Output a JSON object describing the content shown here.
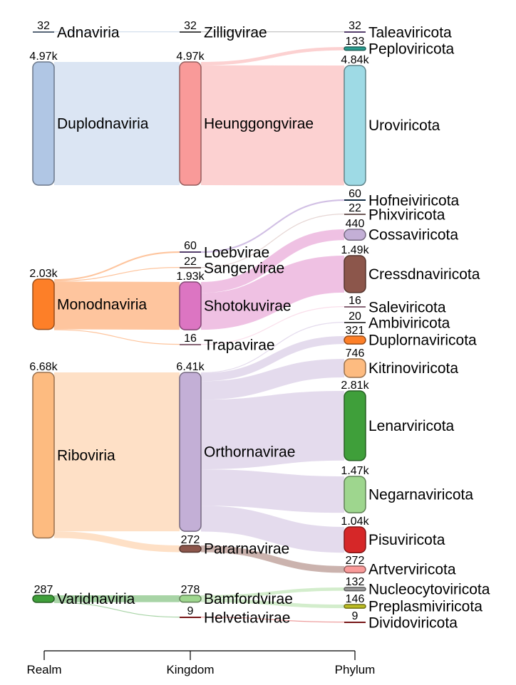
{
  "chart_data": {
    "type": "sankey",
    "axis_labels": [
      "Realm",
      "Kingdom",
      "Phylum"
    ],
    "nodes": [
      {
        "id": "Adnaviria",
        "col": 0,
        "label": "Adnaviria",
        "value_label": "32",
        "color": "#9fb8d8"
      },
      {
        "id": "Duplodnaviria",
        "col": 0,
        "label": "Duplodnaviria",
        "value_label": "4.97k",
        "color": "#b0c6e4"
      },
      {
        "id": "Monodnaviria",
        "col": 0,
        "label": "Monodnaviria",
        "value_label": "2.03k",
        "color": "#fd7f28"
      },
      {
        "id": "Riboviria",
        "col": 0,
        "label": "Riboviria",
        "value_label": "6.68k",
        "color": "#fdbb80"
      },
      {
        "id": "Varidnaviria",
        "col": 0,
        "label": "Varidnaviria",
        "value_label": "287",
        "color": "#3f9f3a"
      },
      {
        "id": "Zilligvirae",
        "col": 1,
        "label": "Zilligvirae",
        "value_label": "32",
        "color": "#7f7f7f"
      },
      {
        "id": "Heunggongvirae",
        "col": 1,
        "label": "Heunggongvirae",
        "value_label": "4.97k",
        "color": "#f99a99"
      },
      {
        "id": "Loebvirae",
        "col": 1,
        "label": "Loebvirae",
        "value_label": "60",
        "color": "#9a71c4"
      },
      {
        "id": "Sangervirae",
        "col": 1,
        "label": "Sangervirae",
        "value_label": "22",
        "color": "#c8a3a0"
      },
      {
        "id": "Shotokuvirae",
        "col": 1,
        "label": "Shotokuvirae",
        "value_label": "1.93k",
        "color": "#dc75c2"
      },
      {
        "id": "Trapavirae",
        "col": 1,
        "label": "Trapavirae",
        "value_label": "16",
        "color": "#f4b6d2"
      },
      {
        "id": "Orthornavirae",
        "col": 1,
        "label": "Orthornavirae",
        "value_label": "6.41k",
        "color": "#c3afd6"
      },
      {
        "id": "Pararnavirae",
        "col": 1,
        "label": "Pararnavirae",
        "value_label": "272",
        "color": "#8c564b"
      },
      {
        "id": "Bamfordvirae",
        "col": 1,
        "label": "Bamfordvirae",
        "value_label": "278",
        "color": "#9ed68e"
      },
      {
        "id": "Helvetiavirae",
        "col": 1,
        "label": "Helvetiavirae",
        "value_label": "9",
        "color": "#d62728"
      },
      {
        "id": "Taleaviricota",
        "col": 2,
        "label": "Taleaviricota",
        "value_label": "32",
        "color": "#9a71c4"
      },
      {
        "id": "Peploviricota",
        "col": 2,
        "label": "Peploviricota",
        "value_label": "133",
        "color": "#2a9d8f"
      },
      {
        "id": "Uroviricota",
        "col": 2,
        "label": "Uroviricota",
        "value_label": "4.84k",
        "color": "#9edae5"
      },
      {
        "id": "Hofneiviricota",
        "col": 2,
        "label": "Hofneiviricota",
        "value_label": "60",
        "color": "#1f4e79"
      },
      {
        "id": "Phixviricota",
        "col": 2,
        "label": "Phixviricota",
        "value_label": "22",
        "color": "#c8a3a0"
      },
      {
        "id": "Cossaviricota",
        "col": 2,
        "label": "Cossaviricota",
        "value_label": "440",
        "color": "#c3afd6"
      },
      {
        "id": "Cressdnaviricota",
        "col": 2,
        "label": "Cressdnaviricota",
        "value_label": "1.49k",
        "color": "#8c564b"
      },
      {
        "id": "Saleviricota",
        "col": 2,
        "label": "Saleviricota",
        "value_label": "16",
        "color": "#f4b6d2"
      },
      {
        "id": "Ambiviricota",
        "col": 2,
        "label": "Ambiviricota",
        "value_label": "20",
        "color": "#7f7f7f"
      },
      {
        "id": "Duplornaviricota",
        "col": 2,
        "label": "Duplornaviricota",
        "value_label": "321",
        "color": "#fd7f28"
      },
      {
        "id": "Kitrinoviricota",
        "col": 2,
        "label": "Kitrinoviricota",
        "value_label": "746",
        "color": "#fdbb80"
      },
      {
        "id": "Lenarviricota",
        "col": 2,
        "label": "Lenarviricota",
        "value_label": "2.81k",
        "color": "#3f9f3a"
      },
      {
        "id": "Negarnaviricota",
        "col": 2,
        "label": "Negarnaviricota",
        "value_label": "1.47k",
        "color": "#9ed68e"
      },
      {
        "id": "Pisuviricota",
        "col": 2,
        "label": "Pisuviricota",
        "value_label": "1.04k",
        "color": "#d62728"
      },
      {
        "id": "Artverviricota",
        "col": 2,
        "label": "Artverviricota",
        "value_label": "272",
        "color": "#f99a99"
      },
      {
        "id": "Nucleocytoviricota",
        "col": 2,
        "label": "Nucleocytoviricota",
        "value_label": "132",
        "color": "#9a9a9a"
      },
      {
        "id": "Preplasmiviricota",
        "col": 2,
        "label": "Preplasmiviricota",
        "value_label": "146",
        "color": "#bcbd22"
      },
      {
        "id": "Dividoviricota",
        "col": 2,
        "label": "Dividoviricota",
        "value_label": "9",
        "color": "#d62728"
      }
    ],
    "links": [
      {
        "source": "Adnaviria",
        "target": "Zilligvirae",
        "value": 32
      },
      {
        "source": "Duplodnaviria",
        "target": "Heunggongvirae",
        "value": 4970
      },
      {
        "source": "Monodnaviria",
        "target": "Loebvirae",
        "value": 60
      },
      {
        "source": "Monodnaviria",
        "target": "Sangervirae",
        "value": 22
      },
      {
        "source": "Monodnaviria",
        "target": "Shotokuvirae",
        "value": 1930
      },
      {
        "source": "Monodnaviria",
        "target": "Trapavirae",
        "value": 16
      },
      {
        "source": "Riboviria",
        "target": "Orthornavirae",
        "value": 6410
      },
      {
        "source": "Riboviria",
        "target": "Pararnavirae",
        "value": 272
      },
      {
        "source": "Varidnaviria",
        "target": "Bamfordvirae",
        "value": 278
      },
      {
        "source": "Varidnaviria",
        "target": "Helvetiavirae",
        "value": 9
      },
      {
        "source": "Zilligvirae",
        "target": "Taleaviricota",
        "value": 32
      },
      {
        "source": "Heunggongvirae",
        "target": "Peploviricota",
        "value": 133
      },
      {
        "source": "Heunggongvirae",
        "target": "Uroviricota",
        "value": 4840
      },
      {
        "source": "Loebvirae",
        "target": "Hofneiviricota",
        "value": 60
      },
      {
        "source": "Sangervirae",
        "target": "Phixviricota",
        "value": 22
      },
      {
        "source": "Shotokuvirae",
        "target": "Cossaviricota",
        "value": 440
      },
      {
        "source": "Shotokuvirae",
        "target": "Cressdnaviricota",
        "value": 1490
      },
      {
        "source": "Trapavirae",
        "target": "Saleviricota",
        "value": 16
      },
      {
        "source": "Orthornavirae",
        "target": "Ambiviricota",
        "value": 20
      },
      {
        "source": "Orthornavirae",
        "target": "Duplornaviricota",
        "value": 321
      },
      {
        "source": "Orthornavirae",
        "target": "Kitrinoviricota",
        "value": 746
      },
      {
        "source": "Orthornavirae",
        "target": "Lenarviricota",
        "value": 2810
      },
      {
        "source": "Orthornavirae",
        "target": "Negarnaviricota",
        "value": 1470
      },
      {
        "source": "Orthornavirae",
        "target": "Pisuviricota",
        "value": 1040
      },
      {
        "source": "Pararnavirae",
        "target": "Artverviricota",
        "value": 272
      },
      {
        "source": "Bamfordvirae",
        "target": "Nucleocytoviricota",
        "value": 132
      },
      {
        "source": "Bamfordvirae",
        "target": "Preplasmiviricota",
        "value": 146
      },
      {
        "source": "Helvetiavirae",
        "target": "Dividoviricota",
        "value": 9
      }
    ]
  }
}
